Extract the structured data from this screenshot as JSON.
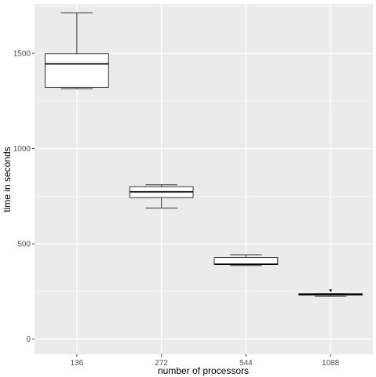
{
  "chart_data": {
    "type": "boxplot",
    "xlabel": "number of processors",
    "ylabel": "time in seconds",
    "categories": [
      "136",
      "272",
      "544",
      "1088"
    ],
    "ylim": [
      -80,
      1760
    ],
    "yticks": [
      0,
      500,
      1000,
      1500
    ],
    "ytick_labels": [
      "0",
      "500",
      "1000",
      "1500"
    ],
    "grid": true,
    "boxes": [
      {
        "category": "136",
        "min": 1315,
        "q1": 1322,
        "median": 1445,
        "q3": 1498,
        "max": 1713,
        "outliers": []
      },
      {
        "category": "272",
        "min": 688,
        "q1": 743,
        "median": 773,
        "q3": 800,
        "max": 810,
        "outliers": []
      },
      {
        "category": "544",
        "min": 386,
        "q1": 392,
        "median": 393,
        "q3": 428,
        "max": 443,
        "outliers": []
      },
      {
        "category": "1088",
        "min": 224,
        "q1": 231,
        "median": 234,
        "q3": 238,
        "max": 238,
        "outliers": [
          256
        ]
      }
    ],
    "colors": {
      "panel": "#ebebeb",
      "grid_major": "#ffffff",
      "box_fill": "#ffffff",
      "box_line": "#333333"
    }
  }
}
